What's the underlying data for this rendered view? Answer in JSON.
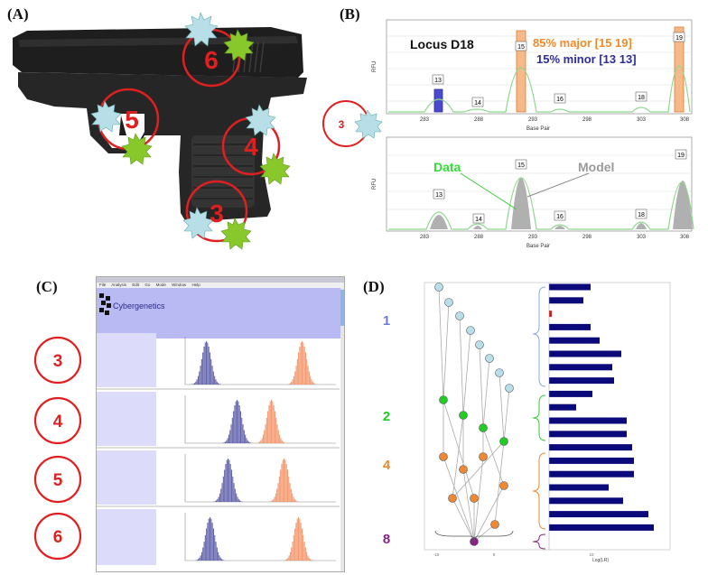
{
  "panels": {
    "a": {
      "label": "(A)",
      "markers": [
        "6",
        "5",
        "4",
        "3"
      ]
    },
    "b": {
      "label": "(B)",
      "side_marker": "3",
      "top": {
        "title": "Locus D18",
        "major": "85% major [15 19]",
        "minor": "15% minor [13 13]",
        "ylabel": "RFU",
        "xlabel": "Base Pair",
        "xticks": [
          "283",
          "288",
          "293",
          "298",
          "303",
          "308"
        ],
        "allele_tags": [
          "13",
          "14",
          "15",
          "16",
          "18",
          "19"
        ]
      },
      "bottom": {
        "data_label": "Data",
        "model_label": "Model",
        "ylabel": "RFU",
        "xlabel": "Base Pair",
        "xticks": [
          "283",
          "288",
          "293",
          "298",
          "303",
          "308"
        ],
        "allele_tags": [
          "13",
          "14",
          "15",
          "16",
          "18",
          "19"
        ]
      }
    },
    "c": {
      "label": "(C)",
      "menu": [
        "File",
        "Analysis",
        "Edit",
        "Go",
        "Mode",
        "Window",
        "Help"
      ],
      "brand": "Cybergenetics",
      "rows": [
        "3",
        "4",
        "5",
        "6"
      ]
    },
    "d": {
      "label": "(D)",
      "groups": [
        "1",
        "2",
        "4",
        "8"
      ],
      "xaxis": "Log(LR)",
      "colors": {
        "group1": "#8aa8e8",
        "group2": "#22cc22",
        "group4": "#ee8833",
        "group8": "#882288"
      }
    }
  },
  "colors": {
    "red": "#e02020",
    "major": "#f08a2a",
    "minor": "#2d2d9e",
    "peak": "#8ed88e",
    "bar": "#0a0a7a"
  }
}
